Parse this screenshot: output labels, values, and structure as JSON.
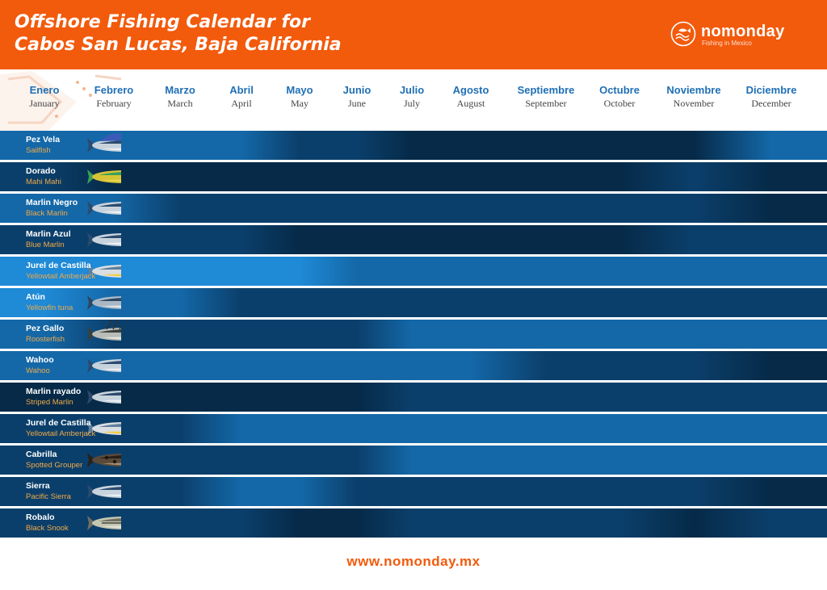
{
  "header": {
    "title_line1": "Offshore Fishing Calendar for",
    "title_line2": "Cabos San Lucas, Baja California",
    "logo_name": "nomonday",
    "logo_tagline": "Fishing in Mexico",
    "logo_icon": "fish-wave-circle-icon"
  },
  "colors": {
    "brand_orange": "#f25a0c",
    "month_blue": "#1f6fb5",
    "label_orange": "#f0a948",
    "best_season": "#1f8ad6",
    "good_season": "#1468a8",
    "low_season": "#0b3f6b",
    "off_season": "#062a48"
  },
  "chart_data": {
    "type": "heatmap",
    "title": "Offshore Fishing Calendar for Cabos San Lucas, Baja California",
    "months_es": [
      "Enero",
      "Febrero",
      "Marzo",
      "Abril",
      "Mayo",
      "Junio",
      "Julio",
      "Agosto",
      "Septiembre",
      "Octubre",
      "Noviembre",
      "Diciembre"
    ],
    "months_en": [
      "January",
      "February",
      "March",
      "April",
      "May",
      "June",
      "July",
      "August",
      "September",
      "October",
      "November",
      "December"
    ],
    "scale_levels": [
      0,
      1,
      2,
      3
    ],
    "species": [
      {
        "es": "Pez Vela",
        "en": "Sailfish",
        "icon": "sailfish-icon",
        "levels": [
          2,
          2,
          2,
          2,
          1,
          1,
          0,
          0,
          0,
          0,
          0,
          2
        ]
      },
      {
        "es": "Dorado",
        "en": "Mahi Mahi",
        "icon": "mahi-mahi-icon",
        "levels": [
          1,
          0,
          0,
          0,
          0,
          0,
          0,
          0,
          0,
          0,
          1,
          0
        ]
      },
      {
        "es": "Marlin Negro",
        "en": "Black Marlin",
        "icon": "black-marlin-icon",
        "levels": [
          2,
          2,
          1,
          1,
          1,
          1,
          1,
          1,
          1,
          1,
          1,
          0
        ]
      },
      {
        "es": "Marlin Azul",
        "en": "Blue Marlin",
        "icon": "blue-marlin-icon",
        "levels": [
          1,
          1,
          1,
          1,
          0,
          0,
          0,
          0,
          0,
          0,
          1,
          1
        ]
      },
      {
        "es": "Jurel de Castilla",
        "en": "Yellowtail Amberjack",
        "icon": "yellowtail-icon",
        "levels": [
          3,
          3,
          3,
          3,
          3,
          2,
          2,
          2,
          2,
          2,
          2,
          2
        ]
      },
      {
        "es": "Atún",
        "en": "Yellowfin tuna",
        "icon": "yellowfin-tuna-icon",
        "levels": [
          3,
          2,
          2,
          1,
          1,
          1,
          1,
          1,
          1,
          1,
          1,
          1
        ]
      },
      {
        "es": "Pez Gallo",
        "en": "Roosterfish",
        "icon": "roosterfish-icon",
        "levels": [
          2,
          1,
          1,
          1,
          1,
          1,
          2,
          2,
          2,
          2,
          2,
          2
        ]
      },
      {
        "es": "Wahoo",
        "en": "Wahoo",
        "icon": "wahoo-icon",
        "levels": [
          2,
          2,
          2,
          2,
          2,
          2,
          2,
          2,
          1,
          1,
          1,
          0
        ]
      },
      {
        "es": "Marlin rayado",
        "en": "Striped Marlin",
        "icon": "striped-marlin-icon",
        "levels": [
          0,
          0,
          0,
          0,
          0,
          0,
          1,
          1,
          1,
          1,
          1,
          1
        ]
      },
      {
        "es": "Jurel de Castilla",
        "en": "Yellowtail Amberjack",
        "icon": "yellowtail-icon",
        "levels": [
          1,
          1,
          1,
          2,
          2,
          2,
          2,
          2,
          2,
          2,
          2,
          2
        ]
      },
      {
        "es": "Cabrilla",
        "en": "Spotted Grouper",
        "icon": "spotted-grouper-icon",
        "levels": [
          1,
          1,
          1,
          1,
          1,
          1,
          2,
          2,
          2,
          2,
          2,
          2
        ]
      },
      {
        "es": "Sierra",
        "en": "Pacific Sierra",
        "icon": "pacific-sierra-icon",
        "levels": [
          1,
          1,
          1,
          2,
          2,
          1,
          1,
          1,
          1,
          1,
          1,
          0
        ]
      },
      {
        "es": "Robalo",
        "en": "Black Snook",
        "icon": "black-snook-icon",
        "levels": [
          1,
          1,
          1,
          1,
          0,
          0,
          1,
          1,
          1,
          1,
          0,
          1
        ]
      }
    ]
  },
  "footer": {
    "url": "www.nomonday.mx"
  }
}
